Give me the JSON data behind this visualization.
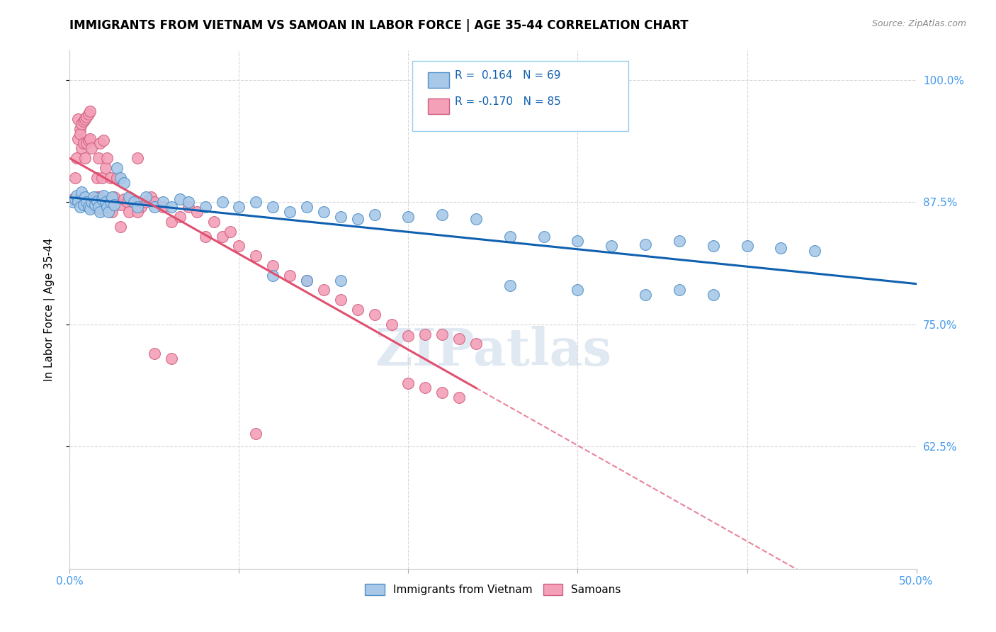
{
  "title": "IMMIGRANTS FROM VIETNAM VS SAMOAN IN LABOR FORCE | AGE 35-44 CORRELATION CHART",
  "source": "Source: ZipAtlas.com",
  "ylabel": "In Labor Force | Age 35-44",
  "xlim": [
    0.0,
    0.5
  ],
  "ylim": [
    0.5,
    1.03
  ],
  "yticks": [
    0.625,
    0.75,
    0.875,
    1.0
  ],
  "ytick_labels": [
    "62.5%",
    "75.0%",
    "87.5%",
    "100.0%"
  ],
  "xticks": [
    0.0,
    0.1,
    0.2,
    0.3,
    0.4,
    0.5
  ],
  "xtick_labels": [
    "0.0%",
    "",
    "",
    "",
    "",
    "50.0%"
  ],
  "blue_R": "0.164",
  "blue_N": "69",
  "pink_R": "-0.170",
  "pink_N": "85",
  "blue_scatter_color": "#a8c8e8",
  "blue_edge_color": "#5090c8",
  "pink_scatter_color": "#f4a0b8",
  "pink_edge_color": "#d06080",
  "blue_line_color": "#1060b0",
  "pink_line_color": "#e05070",
  "tick_color": "#4499ee",
  "grid_color": "#d8d8d8",
  "vietnam_scatter_x": [
    0.002,
    0.003,
    0.004,
    0.005,
    0.006,
    0.007,
    0.008,
    0.009,
    0.01,
    0.011,
    0.012,
    0.013,
    0.014,
    0.015,
    0.016,
    0.017,
    0.018,
    0.019,
    0.02,
    0.021,
    0.022,
    0.023,
    0.024,
    0.025,
    0.026,
    0.028,
    0.03,
    0.032,
    0.035,
    0.038,
    0.04,
    0.045,
    0.05,
    0.055,
    0.06,
    0.065,
    0.07,
    0.08,
    0.09,
    0.1,
    0.11,
    0.12,
    0.13,
    0.14,
    0.15,
    0.16,
    0.17,
    0.18,
    0.2,
    0.22,
    0.24,
    0.26,
    0.28,
    0.3,
    0.32,
    0.34,
    0.36,
    0.38,
    0.4,
    0.42,
    0.44,
    0.26,
    0.3,
    0.34,
    0.36,
    0.38,
    0.12,
    0.14,
    0.16
  ],
  "vietnam_scatter_y": [
    0.875,
    0.878,
    0.882,
    0.876,
    0.87,
    0.885,
    0.872,
    0.88,
    0.875,
    0.87,
    0.868,
    0.875,
    0.88,
    0.872,
    0.876,
    0.87,
    0.865,
    0.878,
    0.882,
    0.875,
    0.87,
    0.865,
    0.875,
    0.88,
    0.872,
    0.91,
    0.9,
    0.895,
    0.88,
    0.875,
    0.87,
    0.88,
    0.87,
    0.875,
    0.87,
    0.878,
    0.875,
    0.87,
    0.875,
    0.87,
    0.875,
    0.87,
    0.865,
    0.87,
    0.865,
    0.86,
    0.858,
    0.862,
    0.86,
    0.862,
    0.858,
    0.84,
    0.84,
    0.835,
    0.83,
    0.832,
    0.835,
    0.83,
    0.83,
    0.828,
    0.825,
    0.79,
    0.785,
    0.78,
    0.785,
    0.78,
    0.8,
    0.795,
    0.795
  ],
  "samoan_scatter_x": [
    0.002,
    0.003,
    0.004,
    0.005,
    0.005,
    0.006,
    0.006,
    0.007,
    0.007,
    0.008,
    0.008,
    0.009,
    0.009,
    0.01,
    0.01,
    0.011,
    0.011,
    0.012,
    0.012,
    0.013,
    0.014,
    0.015,
    0.016,
    0.016,
    0.017,
    0.018,
    0.018,
    0.019,
    0.02,
    0.021,
    0.022,
    0.023,
    0.024,
    0.025,
    0.026,
    0.028,
    0.03,
    0.032,
    0.034,
    0.036,
    0.04,
    0.042,
    0.045,
    0.048,
    0.05,
    0.055,
    0.06,
    0.065,
    0.07,
    0.075,
    0.08,
    0.085,
    0.09,
    0.095,
    0.1,
    0.11,
    0.12,
    0.13,
    0.14,
    0.15,
    0.16,
    0.17,
    0.18,
    0.19,
    0.2,
    0.21,
    0.22,
    0.23,
    0.24,
    0.02,
    0.022,
    0.025,
    0.03,
    0.035,
    0.04,
    0.012,
    0.015,
    0.018,
    0.2,
    0.21,
    0.22,
    0.23,
    0.05,
    0.06,
    0.11
  ],
  "samoan_scatter_y": [
    0.878,
    0.9,
    0.92,
    0.94,
    0.96,
    0.95,
    0.945,
    0.955,
    0.93,
    0.958,
    0.935,
    0.96,
    0.92,
    0.962,
    0.935,
    0.965,
    0.938,
    0.968,
    0.94,
    0.93,
    0.875,
    0.878,
    0.9,
    0.88,
    0.92,
    0.935,
    0.88,
    0.9,
    0.938,
    0.91,
    0.92,
    0.875,
    0.9,
    0.87,
    0.88,
    0.9,
    0.872,
    0.878,
    0.875,
    0.878,
    0.92,
    0.87,
    0.875,
    0.88,
    0.875,
    0.87,
    0.855,
    0.86,
    0.87,
    0.865,
    0.84,
    0.855,
    0.84,
    0.845,
    0.83,
    0.82,
    0.81,
    0.8,
    0.795,
    0.785,
    0.775,
    0.765,
    0.76,
    0.75,
    0.738,
    0.74,
    0.74,
    0.735,
    0.73,
    0.87,
    0.87,
    0.865,
    0.85,
    0.865,
    0.865,
    0.87,
    0.87,
    0.868,
    0.69,
    0.685,
    0.68,
    0.675,
    0.72,
    0.715,
    0.638
  ]
}
